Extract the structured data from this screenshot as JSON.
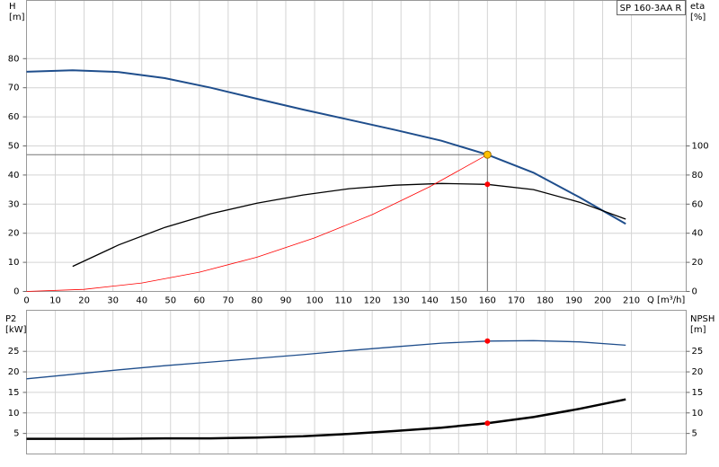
{
  "chart_data": [
    {
      "type": "line",
      "label": "SP 160-3AA R",
      "y_label": "H",
      "y_unit": "[m]",
      "y2_label": "eta",
      "y2_unit": "[%]",
      "x_label": "Q [m³/h]",
      "xlim": [
        0,
        229
      ],
      "xticks": [
        0,
        10,
        20,
        30,
        40,
        50,
        60,
        70,
        80,
        90,
        100,
        110,
        120,
        130,
        140,
        150,
        160,
        170,
        180,
        190,
        200,
        210
      ],
      "ylim": [
        0,
        100
      ],
      "yticks": [
        0,
        10,
        20,
        30,
        40,
        50,
        60,
        70,
        80
      ],
      "y2lim": [
        0,
        200
      ],
      "y2ticks": [
        0,
        20,
        40,
        60,
        80,
        100
      ],
      "grid": true,
      "series": [
        {
          "color": "#1f4e8c",
          "x": [
            0,
            16,
            32,
            48,
            64,
            80,
            96,
            112,
            128,
            144,
            160,
            176,
            192,
            208
          ],
          "values": [
            75.5,
            76,
            75.4,
            73.3,
            70,
            66.2,
            62.5,
            59,
            55.5,
            51.8,
            47,
            40.8,
            32.3,
            23.2
          ]
        },
        {
          "color": "#000000",
          "axis": "y2",
          "x": [
            16,
            32,
            48,
            64,
            80,
            96,
            112,
            128,
            144,
            160,
            176,
            192,
            208
          ],
          "values": [
            17.2,
            32,
            44,
            53.4,
            60.7,
            66.3,
            70.6,
            73,
            74.2,
            73.6,
            70,
            61.3,
            49.7
          ]
        },
        {
          "color": "#ff0000",
          "x": [
            0,
            20,
            40,
            60,
            80,
            100,
            120,
            140,
            160
          ],
          "values": [
            0,
            0.7,
            2.9,
            6.6,
            11.75,
            18.4,
            26.4,
            36,
            47
          ]
        }
      ],
      "markers": [
        {
          "x": 160,
          "y": 47,
          "color": "#ffc000"
        },
        {
          "x": 160,
          "y": 73.6,
          "axis": "y2",
          "color": "#ff0000"
        }
      ]
    },
    {
      "type": "line",
      "y_label": "P2",
      "y_unit": "[kW]",
      "y2_label": "NPSH",
      "y2_unit": "[m]",
      "xlim": [
        0,
        229
      ],
      "ylim": [
        0,
        35
      ],
      "yticks": [
        5,
        10,
        15,
        20,
        25
      ],
      "y2lim": [
        0,
        35
      ],
      "y2ticks": [
        5,
        10,
        15,
        20,
        25
      ],
      "grid": true,
      "series": [
        {
          "color": "#1f4e8c",
          "x": [
            0,
            16,
            32,
            48,
            64,
            80,
            96,
            112,
            128,
            144,
            160,
            176,
            192,
            208
          ],
          "values": [
            18.3,
            19.4,
            20.5,
            21.5,
            22.4,
            23.3,
            24.2,
            25.2,
            26.1,
            27,
            27.5,
            27.6,
            27.3,
            26.5
          ]
        },
        {
          "color": "#000000",
          "axis": "y2",
          "x": [
            0,
            16,
            32,
            48,
            64,
            80,
            96,
            112,
            128,
            144,
            160,
            176,
            192,
            208
          ],
          "values": [
            3.7,
            3.7,
            3.7,
            3.8,
            3.8,
            4.0,
            4.3,
            4.9,
            5.6,
            6.4,
            7.5,
            9,
            11,
            13.3
          ]
        }
      ],
      "markers": [
        {
          "x": 160,
          "y": 27.5,
          "color": "#ff0000"
        },
        {
          "x": 160,
          "y": 7.5,
          "axis": "y2",
          "color": "#ff0000"
        }
      ]
    }
  ]
}
